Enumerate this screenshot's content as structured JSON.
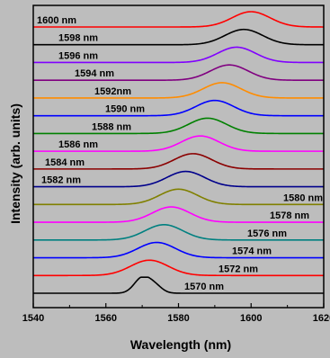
{
  "chart_data": {
    "type": "line",
    "xlabel": "Wavelength (nm)",
    "ylabel": "Intensity (arb. units)",
    "xlim": [
      1540,
      1620
    ],
    "xticks": [
      1540,
      1560,
      1580,
      1600,
      1620
    ],
    "grid": false,
    "legend": "inline-labels",
    "series": [
      {
        "name": "1570 nm",
        "label": "1570 nm",
        "color": "#000000",
        "peak": 1570
      },
      {
        "name": "1572 nm",
        "label": "1572 nm",
        "color": "#ff0000",
        "peak": 1572
      },
      {
        "name": "1574 nm",
        "label": "1574 nm",
        "color": "#0000ff",
        "peak": 1574
      },
      {
        "name": "1576 nm",
        "label": "1576 nm",
        "color": "#008080",
        "peak": 1576
      },
      {
        "name": "1578 nm",
        "label": "1578 nm",
        "color": "#ff00ff",
        "peak": 1578
      },
      {
        "name": "1580 nm",
        "label": "1580 nm",
        "color": "#808000",
        "peak": 1580
      },
      {
        "name": "1582 nm",
        "label": "1582 nm",
        "color": "#00008b",
        "peak": 1582
      },
      {
        "name": "1584 nm",
        "label": "1584 nm",
        "color": "#8b0000",
        "peak": 1584
      },
      {
        "name": "1586 nm",
        "label": "1586 nm",
        "color": "#ff00ff",
        "peak": 1586
      },
      {
        "name": "1588 nm",
        "label": "1588 nm",
        "color": "#008000",
        "peak": 1588
      },
      {
        "name": "1590 nm",
        "label": "1590 nm",
        "color": "#0000ff",
        "peak": 1590
      },
      {
        "name": "1592nm",
        "label": "1592nm",
        "color": "#ff8c00",
        "peak": 1592
      },
      {
        "name": "1594 nm",
        "label": "1594 nm",
        "color": "#800080",
        "peak": 1594
      },
      {
        "name": "1596 nm",
        "label": "1596 nm",
        "color": "#8000ff",
        "peak": 1596
      },
      {
        "name": "1598 nm",
        "label": "1598 nm",
        "color": "#000000",
        "peak": 1598
      },
      {
        "name": "1600 nm",
        "label": "1600 nm",
        "color": "#ff0000",
        "peak": 1600
      }
    ]
  }
}
